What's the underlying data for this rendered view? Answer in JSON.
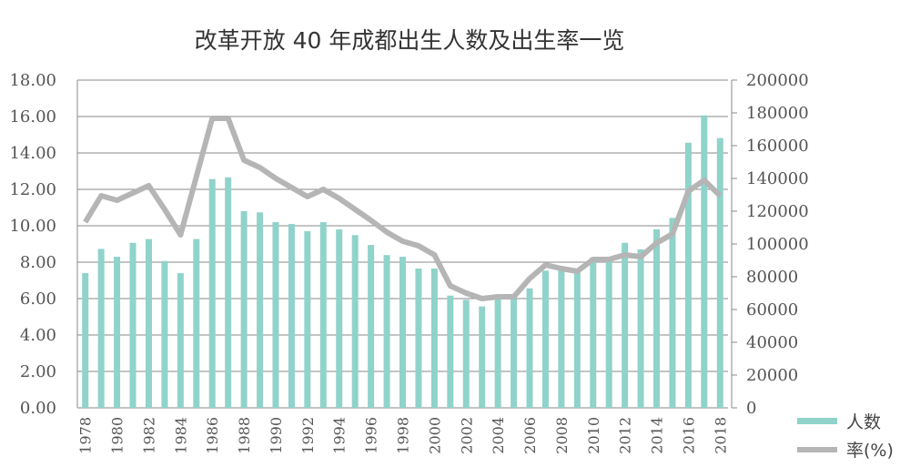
{
  "chart_data": {
    "type": "bar+line",
    "title": "改革开放 40 年成都出生人数及出生率一览",
    "categories": [
      1978,
      1979,
      1980,
      1981,
      1982,
      1983,
      1984,
      1985,
      1986,
      1987,
      1988,
      1989,
      1990,
      1991,
      1992,
      1993,
      1994,
      1995,
      1996,
      1997,
      1998,
      1999,
      2000,
      2001,
      2002,
      2003,
      2004,
      2005,
      2006,
      2007,
      2008,
      2009,
      2010,
      2011,
      2012,
      2013,
      2014,
      2015,
      2016,
      2017,
      2018
    ],
    "series": [
      {
        "name": "人数",
        "type": "bar",
        "axis": "right",
        "color": "#8fd3cb",
        "values": [
          82200,
          97000,
          92200,
          100700,
          103000,
          89600,
          82200,
          103000,
          139600,
          140600,
          120000,
          119300,
          113300,
          112200,
          107800,
          113300,
          108900,
          105400,
          99400,
          93200,
          92200,
          85000,
          85000,
          68500,
          65900,
          61900,
          66500,
          66500,
          72900,
          83700,
          85000,
          83200,
          91800,
          91500,
          100700,
          96700,
          108900,
          115900,
          161800,
          178500,
          164600
        ]
      },
      {
        "name": "率(%)",
        "type": "line",
        "axis": "left",
        "color": "#b5b5b5",
        "values": [
          10.2,
          11.65,
          11.4,
          11.8,
          12.2,
          10.9,
          9.5,
          12.7,
          15.9,
          15.9,
          13.6,
          13.2,
          12.6,
          12.1,
          11.6,
          12.0,
          11.5,
          10.9,
          10.3,
          9.65,
          9.15,
          8.9,
          8.4,
          6.7,
          6.3,
          6.0,
          6.1,
          6.1,
          7.1,
          7.85,
          7.65,
          7.5,
          8.15,
          8.15,
          8.4,
          8.3,
          9.05,
          9.55,
          11.9,
          12.5,
          11.65
        ]
      }
    ],
    "y_left": {
      "lim": [
        0,
        18
      ],
      "ticks": [
        "0.00",
        "2.00",
        "4.00",
        "6.00",
        "8.00",
        "10.00",
        "12.00",
        "14.00",
        "16.00",
        "18.00"
      ]
    },
    "y_right": {
      "lim": [
        0,
        200000
      ],
      "ticks": [
        "0",
        "20000",
        "40000",
        "60000",
        "80000",
        "100000",
        "120000",
        "140000",
        "160000",
        "180000",
        "200000"
      ]
    },
    "x_tick_labels": [
      "1978",
      "1980",
      "1982",
      "1984",
      "1986",
      "1988",
      "1990",
      "1992",
      "1994",
      "1996",
      "1998",
      "2000",
      "2002",
      "2004",
      "2006",
      "2008",
      "2010",
      "2012",
      "2014",
      "2016",
      "2018"
    ],
    "grid": true,
    "legend_position": "bottom-right"
  }
}
